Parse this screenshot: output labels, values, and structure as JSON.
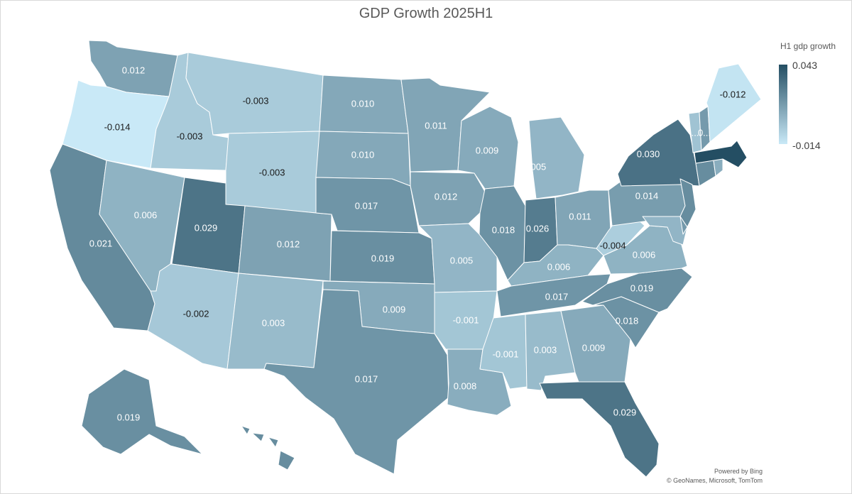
{
  "title": "GDP Growth 2025H1",
  "legend": {
    "title": "H1 gdp growth",
    "max": "0.043",
    "min": "-0.014",
    "max_value": 0.043,
    "min_value": -0.014,
    "color_low": "#c9e9f7",
    "color_high": "#244e63"
  },
  "attribution": {
    "powered": "Powered by Bing",
    "copyright": "© GeoNames, Microsoft, TomTom"
  },
  "chart_data": {
    "type": "choropleth",
    "metric": "H1 gdp growth",
    "regions": [
      {
        "id": "WA",
        "value": 0.012,
        "label": "0.012"
      },
      {
        "id": "OR",
        "value": -0.014,
        "label": "-0.014"
      },
      {
        "id": "CA",
        "value": 0.021,
        "label": "0.021"
      },
      {
        "id": "ID",
        "value": -0.003,
        "label": "-0.003"
      },
      {
        "id": "NV",
        "value": 0.006,
        "label": "0.006"
      },
      {
        "id": "MT",
        "value": -0.003,
        "label": "-0.003"
      },
      {
        "id": "WY",
        "value": -0.003,
        "label": "-0.003"
      },
      {
        "id": "UT",
        "value": 0.029,
        "label": "0.029"
      },
      {
        "id": "AZ",
        "value": -0.002,
        "label": "-0.002"
      },
      {
        "id": "CO",
        "value": 0.012,
        "label": "0.012"
      },
      {
        "id": "NM",
        "value": 0.003,
        "label": "0.003"
      },
      {
        "id": "ND",
        "value": 0.01,
        "label": "0.010"
      },
      {
        "id": "SD",
        "value": 0.01,
        "label": "0.010"
      },
      {
        "id": "NE",
        "value": 0.017,
        "label": "0.017"
      },
      {
        "id": "KS",
        "value": 0.019,
        "label": "0.019"
      },
      {
        "id": "OK",
        "value": 0.009,
        "label": "0.009"
      },
      {
        "id": "TX",
        "value": 0.017,
        "label": "0.017"
      },
      {
        "id": "MN",
        "value": 0.011,
        "label": "0.011"
      },
      {
        "id": "IA",
        "value": 0.012,
        "label": "0.012"
      },
      {
        "id": "MO",
        "value": 0.005,
        "label": "0.005"
      },
      {
        "id": "AR",
        "value": -0.001,
        "label": "-0.001"
      },
      {
        "id": "LA",
        "value": 0.008,
        "label": "0.008"
      },
      {
        "id": "WI",
        "value": 0.009,
        "label": "0.009"
      },
      {
        "id": "IL",
        "value": 0.018,
        "label": "0.018"
      },
      {
        "id": "MI",
        "value": 0.005,
        "label": "0.005"
      },
      {
        "id": "IN",
        "value": 0.026,
        "label": "0.026"
      },
      {
        "id": "OH",
        "value": 0.011,
        "label": "0.011"
      },
      {
        "id": "KY",
        "value": 0.006,
        "label": "0.006"
      },
      {
        "id": "TN",
        "value": 0.017,
        "label": "0.017"
      },
      {
        "id": "MS",
        "value": -0.001,
        "label": "-0.001"
      },
      {
        "id": "AL",
        "value": 0.003,
        "label": "0.003"
      },
      {
        "id": "GA",
        "value": 0.009,
        "label": "0.009"
      },
      {
        "id": "FL",
        "value": 0.029,
        "label": "0.029"
      },
      {
        "id": "SC",
        "value": 0.018,
        "label": "0.018"
      },
      {
        "id": "NC",
        "value": 0.019,
        "label": "0.019"
      },
      {
        "id": "VA",
        "value": 0.006,
        "label": "0.006"
      },
      {
        "id": "WV",
        "value": -0.004,
        "label": "-0.004"
      },
      {
        "id": "PA",
        "value": 0.014,
        "label": "0.014"
      },
      {
        "id": "NY",
        "value": 0.03,
        "label": "0.030"
      },
      {
        "id": "NJ",
        "value": 0.02,
        "label": ""
      },
      {
        "id": "MD",
        "value": 0.005,
        "label": ""
      },
      {
        "id": "DE",
        "value": 0.015,
        "label": ""
      },
      {
        "id": "CT",
        "value": 0.02,
        "label": ""
      },
      {
        "id": "RI",
        "value": 0.008,
        "label": ""
      },
      {
        "id": "MA",
        "value": 0.043,
        "label": ""
      },
      {
        "id": "VT",
        "value": 0.0,
        "label": "..."
      },
      {
        "id": "NH",
        "value": 0.015,
        "label": "0..."
      },
      {
        "id": "ME",
        "value": -0.012,
        "label": "-0.012"
      },
      {
        "id": "AK",
        "value": 0.019,
        "label": "0.019"
      },
      {
        "id": "HI",
        "value": 0.02,
        "label": ""
      }
    ]
  }
}
